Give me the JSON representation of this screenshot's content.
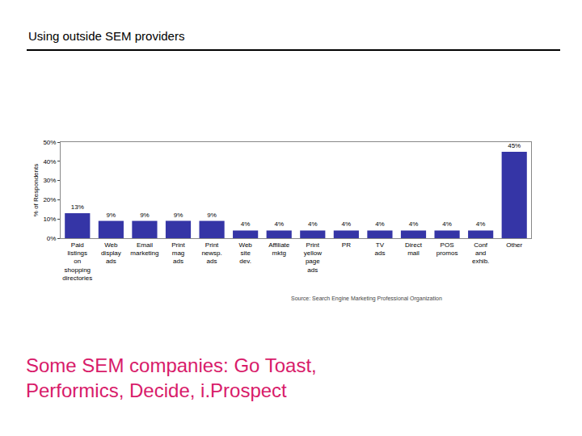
{
  "slide": {
    "title": "Using outside SEM providers",
    "note": "Some SEM companies: Go Toast, Performics, Decide, i.Prospect"
  },
  "chart_data": {
    "type": "bar",
    "y_label": "% of Respondents",
    "source": "Source: Search Engine Marketing Professional Organization",
    "categories": [
      "Paid listings on shopping directories",
      "Web display ads",
      "Email marketing",
      "Print mag ads",
      "Print newsp. ads",
      "Web site dev.",
      "Affiliate mktg",
      "Print yellow page ads",
      "PR",
      "TV ads",
      "Direct mail",
      "POS promos",
      "Conf and exhib.",
      "Other"
    ],
    "values": [
      13,
      9,
      9,
      9,
      9,
      4,
      4,
      4,
      4,
      4,
      4,
      4,
      4,
      45
    ],
    "value_labels": [
      "13%",
      "9%",
      "9%",
      "9%",
      "9%",
      "4%",
      "4%",
      "4%",
      "4%",
      "4%",
      "4%",
      "4%",
      "4%",
      "45%"
    ],
    "data_labels": true,
    "color": "#3535a6",
    "ylim": [
      0,
      50
    ],
    "yticks": [
      {
        "value": 0,
        "label": "0%"
      },
      {
        "value": 10,
        "label": "10%"
      },
      {
        "value": 20,
        "label": "20%"
      },
      {
        "value": 30,
        "label": "30%"
      },
      {
        "value": 40,
        "label": "40%"
      },
      {
        "value": 50,
        "label": "50%"
      }
    ],
    "grid": false
  }
}
